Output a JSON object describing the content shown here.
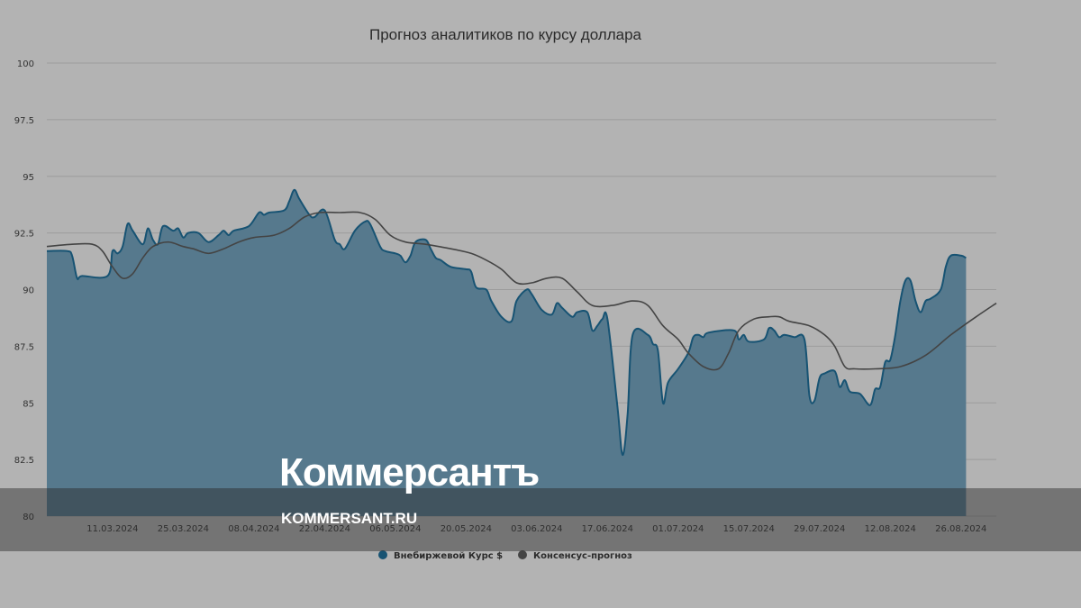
{
  "chart_data": {
    "type": "area",
    "title": "Прогноз аналитиков по курсу доллара",
    "xlabel": "",
    "ylabel": "",
    "ylim": [
      80,
      100
    ],
    "y_ticks": [
      "80",
      "82.5",
      "85",
      "87.5",
      "90",
      "92.5",
      "95",
      "97.5",
      "100"
    ],
    "x_tick_labels": [
      "11.03.2024",
      "25.03.2024",
      "08.04.2024",
      "22.04.2024",
      "06.05.2024",
      "20.05.2024",
      "03.06.2024",
      "17.06.2024",
      "01.07.2024",
      "15.07.2024",
      "29.07.2024",
      "12.08.2024",
      "26.08.2024"
    ],
    "x_range": [
      "2024-02-27",
      "2024-09-02"
    ],
    "grid": true,
    "legend_position": "bottom-center",
    "series": [
      {
        "name": "Внебиржевой Курс $",
        "type": "area",
        "color": "#175373",
        "points": [
          [
            "2024-02-27",
            91.7
          ],
          [
            "2024-03-02",
            91.7
          ],
          [
            "2024-03-03",
            91.5
          ],
          [
            "2024-03-04",
            90.5
          ],
          [
            "2024-03-05",
            90.6
          ],
          [
            "2024-03-10",
            90.6
          ],
          [
            "2024-03-11",
            91.7
          ],
          [
            "2024-03-12",
            91.6
          ],
          [
            "2024-03-13",
            91.9
          ],
          [
            "2024-03-14",
            92.9
          ],
          [
            "2024-03-15",
            92.6
          ],
          [
            "2024-03-17",
            92.0
          ],
          [
            "2024-03-18",
            92.7
          ],
          [
            "2024-03-19",
            92.2
          ],
          [
            "2024-03-20",
            92.0
          ],
          [
            "2024-03-21",
            92.8
          ],
          [
            "2024-03-23",
            92.6
          ],
          [
            "2024-03-24",
            92.7
          ],
          [
            "2024-03-25",
            92.3
          ],
          [
            "2024-03-26",
            92.5
          ],
          [
            "2024-03-28",
            92.5
          ],
          [
            "2024-03-30",
            92.1
          ],
          [
            "2024-04-01",
            92.4
          ],
          [
            "2024-04-02",
            92.6
          ],
          [
            "2024-04-03",
            92.4
          ],
          [
            "2024-04-04",
            92.6
          ],
          [
            "2024-04-07",
            92.8
          ],
          [
            "2024-04-09",
            93.4
          ],
          [
            "2024-04-10",
            93.3
          ],
          [
            "2024-04-11",
            93.4
          ],
          [
            "2024-04-14",
            93.5
          ],
          [
            "2024-04-15",
            93.9
          ],
          [
            "2024-04-16",
            94.4
          ],
          [
            "2024-04-17",
            94.0
          ],
          [
            "2024-04-19",
            93.3
          ],
          [
            "2024-04-20",
            93.2
          ],
          [
            "2024-04-22",
            93.5
          ],
          [
            "2024-04-24",
            92.2
          ],
          [
            "2024-04-25",
            92.0
          ],
          [
            "2024-04-26",
            91.8
          ],
          [
            "2024-04-28",
            92.6
          ],
          [
            "2024-04-30",
            93.0
          ],
          [
            "2024-05-01",
            92.9
          ],
          [
            "2024-05-03",
            91.9
          ],
          [
            "2024-05-04",
            91.7
          ],
          [
            "2024-05-06",
            91.6
          ],
          [
            "2024-05-07",
            91.5
          ],
          [
            "2024-05-08",
            91.2
          ],
          [
            "2024-05-09",
            91.5
          ],
          [
            "2024-05-10",
            92.1
          ],
          [
            "2024-05-12",
            92.2
          ],
          [
            "2024-05-13",
            91.8
          ],
          [
            "2024-05-14",
            91.4
          ],
          [
            "2024-05-15",
            91.3
          ],
          [
            "2024-05-17",
            91.0
          ],
          [
            "2024-05-20",
            90.9
          ],
          [
            "2024-05-21",
            90.8
          ],
          [
            "2024-05-22",
            90.1
          ],
          [
            "2024-05-24",
            90.0
          ],
          [
            "2024-05-25",
            89.5
          ],
          [
            "2024-05-27",
            88.8
          ],
          [
            "2024-05-29",
            88.6
          ],
          [
            "2024-05-30",
            89.5
          ],
          [
            "2024-06-01",
            90.0
          ],
          [
            "2024-06-02",
            89.8
          ],
          [
            "2024-06-04",
            89.1
          ],
          [
            "2024-06-06",
            88.9
          ],
          [
            "2024-06-07",
            89.4
          ],
          [
            "2024-06-08",
            89.2
          ],
          [
            "2024-06-10",
            88.8
          ],
          [
            "2024-06-11",
            89.0
          ],
          [
            "2024-06-13",
            89.0
          ],
          [
            "2024-06-14",
            88.2
          ],
          [
            "2024-06-15",
            88.4
          ],
          [
            "2024-06-16",
            88.7
          ],
          [
            "2024-06-17",
            88.7
          ],
          [
            "2024-06-19",
            84.8
          ],
          [
            "2024-06-20",
            82.7
          ],
          [
            "2024-06-21",
            84.5
          ],
          [
            "2024-06-22",
            88.0
          ],
          [
            "2024-06-25",
            88.0
          ],
          [
            "2024-06-26",
            87.6
          ],
          [
            "2024-06-27",
            87.3
          ],
          [
            "2024-06-28",
            85.0
          ],
          [
            "2024-06-29",
            85.9
          ],
          [
            "2024-07-01",
            86.5
          ],
          [
            "2024-07-03",
            87.2
          ],
          [
            "2024-07-04",
            87.9
          ],
          [
            "2024-07-05",
            88.0
          ],
          [
            "2024-07-06",
            87.9
          ],
          [
            "2024-07-07",
            88.1
          ],
          [
            "2024-07-12",
            88.2
          ],
          [
            "2024-07-13",
            87.8
          ],
          [
            "2024-07-14",
            88.0
          ],
          [
            "2024-07-15",
            87.7
          ],
          [
            "2024-07-18",
            87.8
          ],
          [
            "2024-07-19",
            88.3
          ],
          [
            "2024-07-20",
            88.2
          ],
          [
            "2024-07-21",
            87.9
          ],
          [
            "2024-07-22",
            88.0
          ],
          [
            "2024-07-24",
            87.9
          ],
          [
            "2024-07-26",
            87.8
          ],
          [
            "2024-07-27",
            85.3
          ],
          [
            "2024-07-28",
            85.1
          ],
          [
            "2024-07-29",
            86.1
          ],
          [
            "2024-07-30",
            86.3
          ],
          [
            "2024-08-01",
            86.4
          ],
          [
            "2024-08-02",
            85.7
          ],
          [
            "2024-08-03",
            86.0
          ],
          [
            "2024-08-04",
            85.5
          ],
          [
            "2024-08-06",
            85.4
          ],
          [
            "2024-08-08",
            84.9
          ],
          [
            "2024-08-09",
            85.6
          ],
          [
            "2024-08-10",
            85.7
          ],
          [
            "2024-08-11",
            86.8
          ],
          [
            "2024-08-12",
            86.9
          ],
          [
            "2024-08-13",
            88.0
          ],
          [
            "2024-08-14",
            89.5
          ],
          [
            "2024-08-15",
            90.4
          ],
          [
            "2024-08-16",
            90.4
          ],
          [
            "2024-08-17",
            89.5
          ],
          [
            "2024-08-18",
            89.0
          ],
          [
            "2024-08-19",
            89.5
          ],
          [
            "2024-08-20",
            89.6
          ],
          [
            "2024-08-22",
            90.0
          ],
          [
            "2024-08-23",
            91.0
          ],
          [
            "2024-08-24",
            91.5
          ],
          [
            "2024-08-26",
            91.5
          ],
          [
            "2024-08-27",
            91.4
          ]
        ]
      },
      {
        "name": "Консенсус-прогноз",
        "type": "line",
        "color": "#444444",
        "points": [
          [
            "2024-02-27",
            91.9
          ],
          [
            "2024-03-03",
            92.0
          ],
          [
            "2024-03-07",
            92.0
          ],
          [
            "2024-03-09",
            91.7
          ],
          [
            "2024-03-11",
            91.0
          ],
          [
            "2024-03-13",
            90.5
          ],
          [
            "2024-03-15",
            90.7
          ],
          [
            "2024-03-17",
            91.4
          ],
          [
            "2024-03-19",
            91.9
          ],
          [
            "2024-03-22",
            92.1
          ],
          [
            "2024-03-25",
            91.9
          ],
          [
            "2024-03-27",
            91.8
          ],
          [
            "2024-03-30",
            91.6
          ],
          [
            "2024-04-02",
            91.8
          ],
          [
            "2024-04-05",
            92.1
          ],
          [
            "2024-04-08",
            92.3
          ],
          [
            "2024-04-12",
            92.4
          ],
          [
            "2024-04-15",
            92.7
          ],
          [
            "2024-04-18",
            93.2
          ],
          [
            "2024-04-21",
            93.4
          ],
          [
            "2024-04-25",
            93.4
          ],
          [
            "2024-04-29",
            93.4
          ],
          [
            "2024-05-02",
            93.1
          ],
          [
            "2024-05-05",
            92.4
          ],
          [
            "2024-05-08",
            92.1
          ],
          [
            "2024-05-12",
            92.0
          ],
          [
            "2024-05-17",
            91.8
          ],
          [
            "2024-05-21",
            91.6
          ],
          [
            "2024-05-24",
            91.3
          ],
          [
            "2024-05-27",
            90.9
          ],
          [
            "2024-05-30",
            90.3
          ],
          [
            "2024-06-02",
            90.3
          ],
          [
            "2024-06-05",
            90.5
          ],
          [
            "2024-06-08",
            90.5
          ],
          [
            "2024-06-11",
            89.9
          ],
          [
            "2024-06-14",
            89.3
          ],
          [
            "2024-06-18",
            89.3
          ],
          [
            "2024-06-22",
            89.5
          ],
          [
            "2024-06-25",
            89.3
          ],
          [
            "2024-06-28",
            88.4
          ],
          [
            "2024-07-01",
            87.8
          ],
          [
            "2024-07-03",
            87.2
          ],
          [
            "2024-07-06",
            86.6
          ],
          [
            "2024-07-09",
            86.5
          ],
          [
            "2024-07-11",
            87.2
          ],
          [
            "2024-07-13",
            88.2
          ],
          [
            "2024-07-16",
            88.7
          ],
          [
            "2024-07-19",
            88.8
          ],
          [
            "2024-07-21",
            88.8
          ],
          [
            "2024-07-23",
            88.6
          ],
          [
            "2024-07-27",
            88.4
          ],
          [
            "2024-07-30",
            88.0
          ],
          [
            "2024-08-01",
            87.5
          ],
          [
            "2024-08-03",
            86.6
          ],
          [
            "2024-08-05",
            86.5
          ],
          [
            "2024-08-09",
            86.5
          ],
          [
            "2024-08-14",
            86.6
          ],
          [
            "2024-08-19",
            87.1
          ],
          [
            "2024-08-24",
            88.0
          ],
          [
            "2024-08-29",
            88.8
          ],
          [
            "2024-09-02",
            89.4
          ]
        ]
      }
    ]
  },
  "watermark": {
    "logo_text": "Коммерсантъ",
    "url_text": "KOMMERSANT.RU"
  }
}
